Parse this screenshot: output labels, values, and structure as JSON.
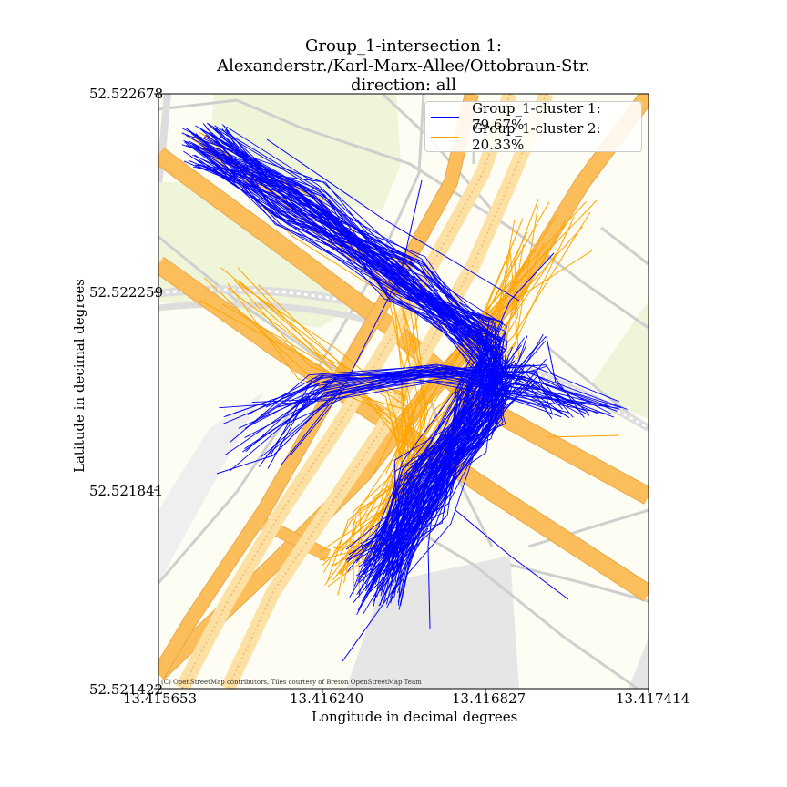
{
  "title": {
    "line1": "Group_1-intersection 1:",
    "line2": "Alexanderstr./Karl-Marx-Allee/Ottobraun-Str.",
    "line3": "direction: all"
  },
  "axes": {
    "xlabel": "Longitude in decimal degrees",
    "ylabel": "Latitude in decimal degrees",
    "xticks": [
      "13.415653",
      "13.416240",
      "13.416827",
      "13.417414"
    ],
    "yticks": [
      "52.522678",
      "52.522259",
      "52.521841",
      "52.521422"
    ],
    "xlim": [
      13.415653,
      13.417414
    ],
    "ylim": [
      52.521422,
      52.522678
    ]
  },
  "legend": {
    "placement": "top-right",
    "items": [
      {
        "label": "Group_1-cluster 1: 79.67%",
        "color": "#0000ff"
      },
      {
        "label": "Group_1-cluster 2: 20.33%",
        "color": "#ffa500"
      }
    ]
  },
  "attribution": "(C) OpenStreetMap contributors, Tiles courtesy of Breton OpenStreetMap Team",
  "map": {
    "colors": {
      "background": "#fdfdf3",
      "park": "#eef5d8",
      "major_road": "#fbbe5a",
      "road_dashes": "#fde0a3",
      "minor_road": "#cfcfcf",
      "rail": "#dddddd",
      "building_area": "#e6e6e6"
    }
  }
}
